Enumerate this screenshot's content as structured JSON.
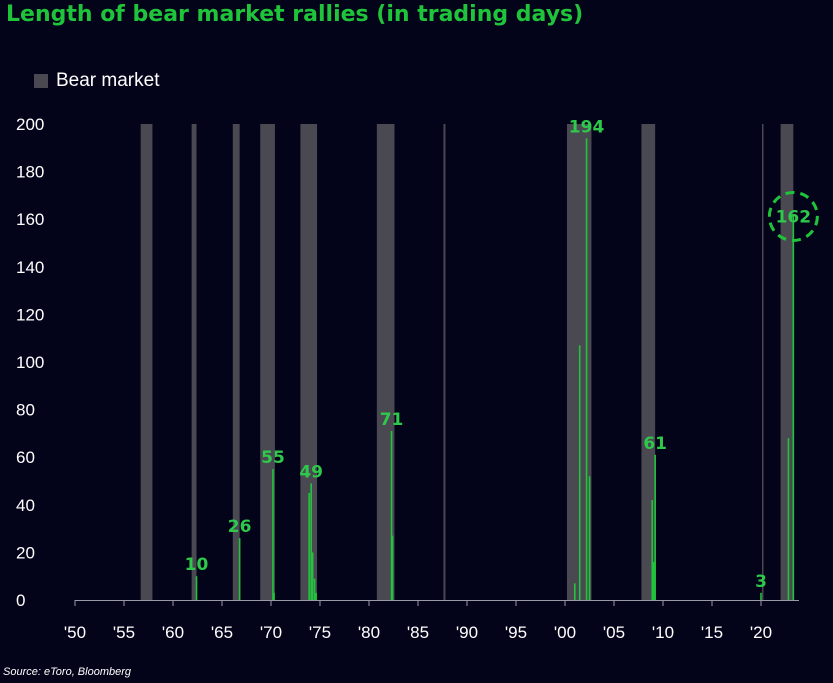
{
  "title": "Length of bear market rallies (in trading days)",
  "legend": {
    "label": "Bear market"
  },
  "source": "Source: eToro, Bloomberg",
  "colors": {
    "rally": "#21c43c",
    "bear": "#4a4952",
    "background": "#03031a",
    "text": "#ffffff",
    "highlight": "#1fc43a"
  },
  "chart_data": {
    "type": "bar",
    "title": "Length of bear market rallies (in trading days)",
    "ylabel": "",
    "xlabel": "",
    "ylim": [
      0,
      200
    ],
    "xlim": [
      1950,
      2024
    ],
    "y_ticks": [
      0,
      20,
      40,
      60,
      80,
      100,
      120,
      140,
      160,
      180,
      200
    ],
    "x_ticks": [
      1950,
      1955,
      1960,
      1965,
      1970,
      1975,
      1980,
      1985,
      1990,
      1995,
      2000,
      2005,
      2010,
      2015,
      2020
    ],
    "x_tick_labels": [
      "'50",
      "'55",
      "'60",
      "'65",
      "'70",
      "'75",
      "'80",
      "'85",
      "'90",
      "'95",
      "'00",
      "'05",
      "'10",
      "'15",
      "'20"
    ],
    "legend_position": "top-left",
    "grid": false,
    "bear_markets": [
      [
        1956.7,
        1957.9
      ],
      [
        1961.9,
        1962.4
      ],
      [
        1966.1,
        1966.8
      ],
      [
        1968.9,
        1970.4
      ],
      [
        1973.0,
        1974.7
      ],
      [
        1980.8,
        1982.6
      ],
      [
        1987.6,
        1987.8
      ],
      [
        2000.2,
        2002.7
      ],
      [
        2007.8,
        2009.2
      ],
      [
        2020.1,
        2020.2
      ],
      [
        2022.0,
        2023.3
      ]
    ],
    "rallies": [
      {
        "x": 1962.4,
        "value": 10
      },
      {
        "x": 1966.8,
        "value": 26
      },
      {
        "x": 1970.2,
        "value": 55
      },
      {
        "x": 1970.3,
        "value": 3
      },
      {
        "x": 1973.9,
        "value": 45
      },
      {
        "x": 1974.1,
        "value": 49
      },
      {
        "x": 1974.25,
        "value": 20
      },
      {
        "x": 1974.45,
        "value": 9
      },
      {
        "x": 1974.6,
        "value": 3
      },
      {
        "x": 1982.3,
        "value": 71
      },
      {
        "x": 1982.4,
        "value": 27
      },
      {
        "x": 2001.0,
        "value": 7
      },
      {
        "x": 2001.5,
        "value": 107
      },
      {
        "x": 2002.2,
        "value": 194
      },
      {
        "x": 2002.5,
        "value": 52
      },
      {
        "x": 2008.9,
        "value": 42
      },
      {
        "x": 2009.05,
        "value": 16
      },
      {
        "x": 2009.2,
        "value": 61
      },
      {
        "x": 2020.0,
        "value": 3
      },
      {
        "x": 2022.8,
        "value": 68
      },
      {
        "x": 2023.3,
        "value": 162
      }
    ],
    "annotations": [
      {
        "x": 1962.4,
        "value": 10,
        "text": "10"
      },
      {
        "x": 1966.8,
        "value": 26,
        "text": "26"
      },
      {
        "x": 1970.2,
        "value": 55,
        "text": "55"
      },
      {
        "x": 1974.1,
        "value": 49,
        "text": "49"
      },
      {
        "x": 1982.3,
        "value": 71,
        "text": "71"
      },
      {
        "x": 2002.2,
        "value": 194,
        "text": "194"
      },
      {
        "x": 2009.2,
        "value": 61,
        "text": "61"
      },
      {
        "x": 2020.0,
        "value": 3,
        "text": "3"
      },
      {
        "x": 2023.3,
        "value": 162,
        "text": "162",
        "circled": true
      }
    ]
  }
}
